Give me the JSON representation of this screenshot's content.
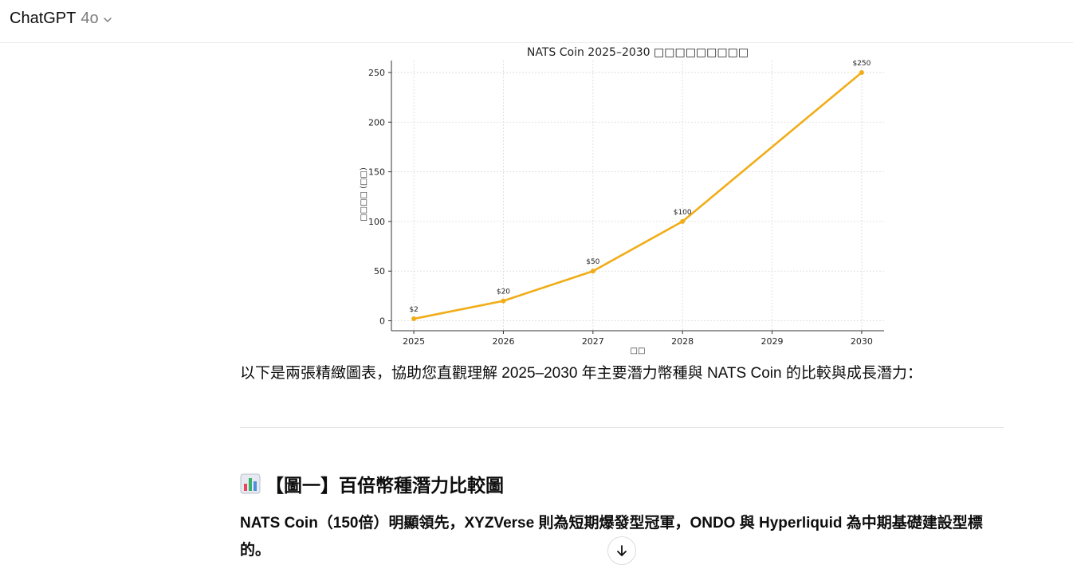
{
  "header": {
    "model_name": "ChatGPT",
    "model_version": "4o"
  },
  "chart_data": {
    "type": "line",
    "title": "NATS Coin 2025–2030 □□□□□□□□□",
    "xlabel": "□□",
    "ylabel": "□□□□ (□□)",
    "x": [
      2025,
      2026,
      2027,
      2028,
      2029,
      2030
    ],
    "xticks": [
      "2025",
      "2026",
      "2027",
      "2028",
      "2029",
      "2030"
    ],
    "yticks": [
      "0",
      "50",
      "100",
      "150",
      "200",
      "250"
    ],
    "ylim": [
      -10,
      262
    ],
    "grid": true,
    "series": [
      {
        "values": [
          2,
          20,
          50,
          100,
          175,
          250
        ],
        "color": "#f0ad17"
      }
    ],
    "data_labels": [
      {
        "x": 2025,
        "y": 2,
        "text": "$2"
      },
      {
        "x": 2026,
        "y": 20,
        "text": "$20"
      },
      {
        "x": 2027,
        "y": 50,
        "text": "$50"
      },
      {
        "x": 2028,
        "y": 100,
        "text": "$100"
      },
      {
        "x": 2030,
        "y": 250,
        "text": "$250"
      }
    ]
  },
  "message": {
    "intro": "以下是兩張精緻圖表，協助您直觀理解 2025–2030 年主要潛力幣種與 NATS Coin 的比較與成長潛力：",
    "section_icon": "bar-chart-emoji",
    "section_heading": "【圖一】百倍幣種潛力比較圖",
    "paragraph": "NATS Coin（150倍）明顯領先，XYZVerse 則為短期爆發型冠軍，ONDO 與 Hyperliquid 為中期基礎建設型標的。"
  },
  "scroll_button": {
    "icon": "arrow-down-icon"
  }
}
